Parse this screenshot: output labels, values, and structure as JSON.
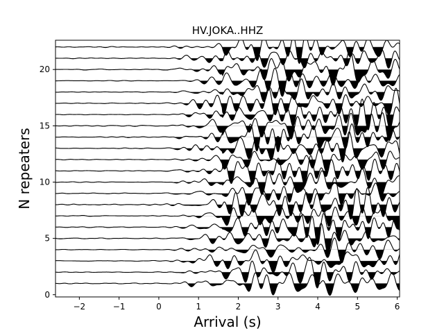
{
  "chart_data": {
    "type": "line",
    "title": "HV.JOKA..HHZ",
    "xlabel": "Arrival (s)",
    "ylabel": "N repeaters",
    "xlim": [
      -2.6,
      6.06
    ],
    "ylim": [
      -0.2,
      22.6
    ],
    "xticks": [
      -2,
      -1,
      0,
      1,
      2,
      3,
      4,
      5,
      6
    ],
    "yticks": [
      0,
      5,
      10,
      15,
      20
    ],
    "grid": false,
    "legend": "none",
    "trace_count": 22,
    "trace_offsets": [
      1,
      2,
      3,
      4,
      5,
      6,
      7,
      8,
      9,
      10,
      11,
      12,
      13,
      14,
      15,
      16,
      17,
      18,
      19,
      20,
      21,
      22
    ],
    "onset_time": 0.15,
    "strong_arrival_time": 1.6,
    "fill": "negative lobes filled black",
    "line_color": "#000000"
  }
}
